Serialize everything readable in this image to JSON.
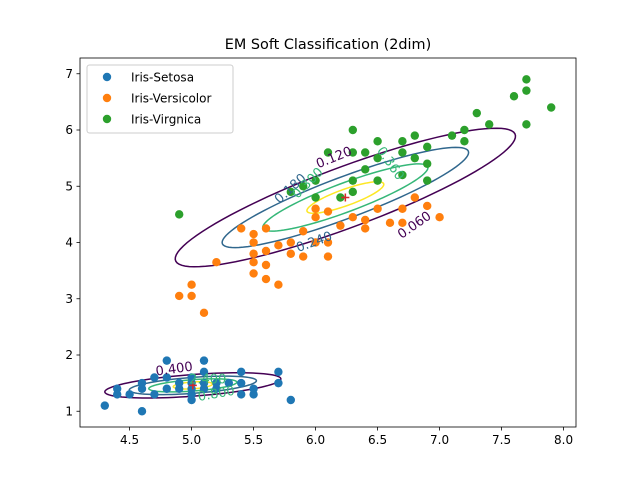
{
  "chart_data": {
    "type": "scatter",
    "title": "EM Soft Classification (2dim)",
    "xlabel": "",
    "ylabel": "",
    "xlim": [
      4.1,
      8.1
    ],
    "ylim": [
      0.72,
      7.28
    ],
    "xticks": [
      4.5,
      5.0,
      5.5,
      6.0,
      6.5,
      7.0,
      7.5,
      8.0
    ],
    "xtick_labels": [
      "4.5",
      "5.0",
      "5.5",
      "6.0",
      "6.5",
      "7.0",
      "7.5",
      "8.0"
    ],
    "yticks": [
      1,
      2,
      3,
      4,
      5,
      6,
      7
    ],
    "ytick_labels": [
      "1",
      "2",
      "3",
      "4",
      "5",
      "6",
      "7"
    ],
    "legend_position": "top-left",
    "series": [
      {
        "name": "Iris-Setosa",
        "color": "#1f77b4",
        "points": [
          [
            4.3,
            1.1
          ],
          [
            4.4,
            1.3
          ],
          [
            4.4,
            1.4
          ],
          [
            4.5,
            1.3
          ],
          [
            4.6,
            1.0
          ],
          [
            4.6,
            1.4
          ],
          [
            4.6,
            1.5
          ],
          [
            4.7,
            1.3
          ],
          [
            4.7,
            1.6
          ],
          [
            4.8,
            1.4
          ],
          [
            4.8,
            1.6
          ],
          [
            4.8,
            1.9
          ],
          [
            4.9,
            1.4
          ],
          [
            4.9,
            1.5
          ],
          [
            5.0,
            1.2
          ],
          [
            5.0,
            1.3
          ],
          [
            5.0,
            1.4
          ],
          [
            5.0,
            1.5
          ],
          [
            5.0,
            1.6
          ],
          [
            5.1,
            1.4
          ],
          [
            5.1,
            1.5
          ],
          [
            5.1,
            1.7
          ],
          [
            5.1,
            1.9
          ],
          [
            5.2,
            1.4
          ],
          [
            5.2,
            1.5
          ],
          [
            5.3,
            1.5
          ],
          [
            5.4,
            1.3
          ],
          [
            5.4,
            1.5
          ],
          [
            5.4,
            1.7
          ],
          [
            5.5,
            1.3
          ],
          [
            5.5,
            1.4
          ],
          [
            5.7,
            1.5
          ],
          [
            5.7,
            1.7
          ],
          [
            5.8,
            1.2
          ]
        ]
      },
      {
        "name": "Iris-Versicolor",
        "color": "#ff7f0e",
        "points": [
          [
            4.9,
            3.05
          ],
          [
            5.0,
            3.05
          ],
          [
            5.0,
            3.25
          ],
          [
            5.1,
            2.75
          ],
          [
            5.2,
            3.65
          ],
          [
            5.4,
            4.25
          ],
          [
            5.5,
            3.45
          ],
          [
            5.5,
            3.65
          ],
          [
            5.5,
            3.8
          ],
          [
            5.5,
            4.0
          ],
          [
            5.5,
            4.15
          ],
          [
            5.6,
            3.35
          ],
          [
            5.6,
            3.6
          ],
          [
            5.6,
            3.85
          ],
          [
            5.6,
            4.25
          ],
          [
            5.7,
            3.25
          ],
          [
            5.7,
            3.95
          ],
          [
            5.8,
            3.8
          ],
          [
            5.8,
            4.0
          ],
          [
            5.9,
            3.75
          ],
          [
            5.9,
            4.2
          ],
          [
            6.0,
            4.0
          ],
          [
            6.0,
            4.45
          ],
          [
            6.0,
            4.6
          ],
          [
            6.1,
            3.75
          ],
          [
            6.1,
            4.0
          ],
          [
            6.1,
            4.55
          ],
          [
            6.2,
            4.3
          ],
          [
            6.3,
            4.45
          ],
          [
            6.4,
            4.25
          ],
          [
            6.4,
            4.4
          ],
          [
            6.5,
            4.6
          ],
          [
            6.6,
            4.35
          ],
          [
            6.7,
            4.35
          ],
          [
            6.7,
            4.6
          ],
          [
            6.8,
            4.8
          ],
          [
            6.9,
            4.65
          ],
          [
            7.0,
            4.45
          ]
        ]
      },
      {
        "name": "Iris-Virgnica",
        "color": "#2ca02c",
        "points": [
          [
            4.9,
            4.5
          ],
          [
            5.8,
            4.9
          ],
          [
            5.9,
            5.0
          ],
          [
            6.0,
            4.8
          ],
          [
            6.0,
            5.1
          ],
          [
            6.1,
            5.6
          ],
          [
            6.2,
            4.8
          ],
          [
            6.3,
            4.9
          ],
          [
            6.3,
            5.1
          ],
          [
            6.3,
            5.6
          ],
          [
            6.3,
            6.0
          ],
          [
            6.4,
            5.3
          ],
          [
            6.4,
            5.6
          ],
          [
            6.5,
            5.1
          ],
          [
            6.5,
            5.5
          ],
          [
            6.5,
            5.8
          ],
          [
            6.7,
            5.2
          ],
          [
            6.7,
            5.6
          ],
          [
            6.7,
            5.8
          ],
          [
            6.8,
            5.5
          ],
          [
            6.8,
            5.9
          ],
          [
            6.9,
            5.1
          ],
          [
            6.9,
            5.4
          ],
          [
            6.9,
            5.7
          ],
          [
            7.1,
            5.9
          ],
          [
            7.2,
            5.8
          ],
          [
            7.2,
            6.0
          ],
          [
            7.3,
            6.3
          ],
          [
            7.4,
            6.1
          ],
          [
            7.6,
            6.6
          ],
          [
            7.7,
            6.1
          ],
          [
            7.7,
            6.7
          ],
          [
            7.7,
            6.9
          ],
          [
            7.9,
            6.4
          ]
        ]
      }
    ],
    "centers": [
      {
        "x": 5.01,
        "y": 1.46,
        "color": "#d62728"
      },
      {
        "x": 6.24,
        "y": 4.8,
        "color": "#d62728"
      }
    ],
    "contour_colors": [
      "#440154",
      "#30678d",
      "#35b778",
      "#fde725"
    ],
    "contours": [
      {
        "cx": 5.01,
        "cy": 1.46,
        "axis_x": [
          0.985,
          0.172
        ],
        "axis_y": [
          -0.172,
          0.985
        ],
        "levels": [
          [
            0.72,
            0.19
          ],
          [
            0.52,
            0.14
          ],
          [
            0.36,
            0.1
          ],
          [
            0.16,
            0.06
          ]
        ],
        "labels": [
          {
            "text": "0.400",
            "x": 4.86,
            "y": 1.74,
            "rotate": -8,
            "color": "#440154"
          },
          {
            "text": "2.400",
            "x": 5.13,
            "y": 1.56,
            "rotate": 0,
            "color": "#35b778"
          },
          {
            "text": "0.800",
            "x": 5.2,
            "y": 1.3,
            "rotate": -10,
            "color": "#35b778"
          }
        ]
      },
      {
        "cx": 6.24,
        "cy": 4.8,
        "axis_x": [
          0.749,
          0.663
        ],
        "axis_y": [
          -0.663,
          0.749
        ],
        "levels": [
          [
            1.79,
            0.44
          ],
          [
            1.3,
            0.3
          ],
          [
            0.87,
            0.21
          ],
          [
            0.4,
            0.12
          ]
        ],
        "labels": [
          {
            "text": "0.120",
            "x": 6.15,
            "y": 5.5,
            "rotate": -22,
            "color": "#440154"
          },
          {
            "text": "0.180",
            "x": 5.8,
            "y": 4.95,
            "rotate": -42,
            "color": "#30678d"
          },
          {
            "text": "0.300",
            "x": 5.94,
            "y": 5.05,
            "rotate": -45,
            "color": "#35b778"
          },
          {
            "text": "0.360",
            "x": 6.6,
            "y": 5.4,
            "rotate": 55,
            "color": "#35b778"
          },
          {
            "text": "0.240",
            "x": 5.99,
            "y": 4.0,
            "rotate": -20,
            "color": "#30678d"
          },
          {
            "text": "0.060",
            "x": 6.8,
            "y": 4.3,
            "rotate": -35,
            "color": "#440154"
          }
        ]
      }
    ]
  }
}
